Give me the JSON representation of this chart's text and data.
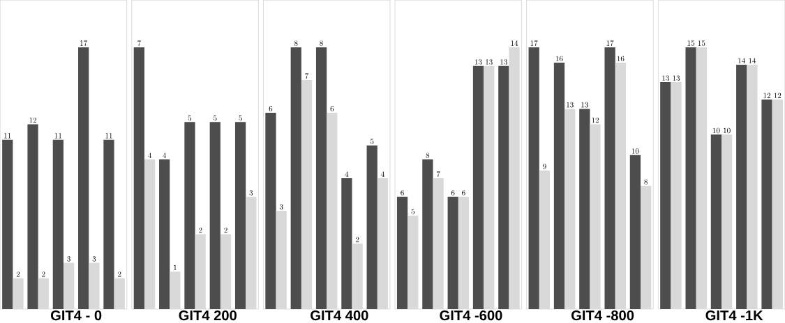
{
  "chart_data": [
    {
      "type": "bar",
      "title": "GIT4 - 0",
      "categories": [
        null,
        null,
        null,
        null,
        null
      ],
      "data_labels": true,
      "series": [
        {
          "color": "#4d4d4d",
          "values": [
            11,
            12,
            11,
            17,
            11
          ]
        },
        {
          "color": "#d9d9d9",
          "values": [
            2,
            2,
            3,
            3,
            2
          ]
        }
      ]
    },
    {
      "type": "bar",
      "title": "GIT4 200",
      "categories": [
        null,
        null,
        null,
        null,
        null
      ],
      "data_labels": true,
      "series": [
        {
          "color": "#4d4d4d",
          "values": [
            7,
            4,
            5,
            5,
            5
          ]
        },
        {
          "color": "#d9d9d9",
          "values": [
            4,
            1,
            2,
            2,
            3
          ]
        }
      ]
    },
    {
      "type": "bar",
      "title": "GIT4 400",
      "categories": [
        null,
        null,
        null,
        null,
        null
      ],
      "data_labels": true,
      "series": [
        {
          "color": "#4d4d4d",
          "values": [
            6,
            8,
            8,
            4,
            5
          ]
        },
        {
          "color": "#d9d9d9",
          "values": [
            3,
            7,
            6,
            2,
            4
          ]
        }
      ]
    },
    {
      "type": "bar",
      "title": "GIT4 -600",
      "categories": [
        null,
        null,
        null,
        null,
        null
      ],
      "data_labels": true,
      "series": [
        {
          "color": "#4d4d4d",
          "values": [
            6,
            8,
            6,
            13,
            13
          ]
        },
        {
          "color": "#d9d9d9",
          "values": [
            5,
            7,
            6,
            13,
            14
          ]
        }
      ]
    },
    {
      "type": "bar",
      "title": "GIT4 -800",
      "categories": [
        null,
        null,
        null,
        null,
        null
      ],
      "data_labels": true,
      "series": [
        {
          "color": "#4d4d4d",
          "values": [
            17,
            16,
            13,
            17,
            10
          ]
        },
        {
          "color": "#d9d9d9",
          "values": [
            9,
            13,
            12,
            16,
            8
          ]
        }
      ]
    },
    {
      "type": "bar",
      "title": "GIT4 -1K",
      "categories": [
        null,
        null,
        null,
        null,
        null
      ],
      "data_labels": true,
      "series": [
        {
          "color": "#4d4d4d",
          "values": [
            13,
            15,
            10,
            14,
            12
          ]
        },
        {
          "color": "#d9d9d9",
          "values": [
            13,
            15,
            10,
            14,
            12
          ]
        }
      ]
    }
  ]
}
